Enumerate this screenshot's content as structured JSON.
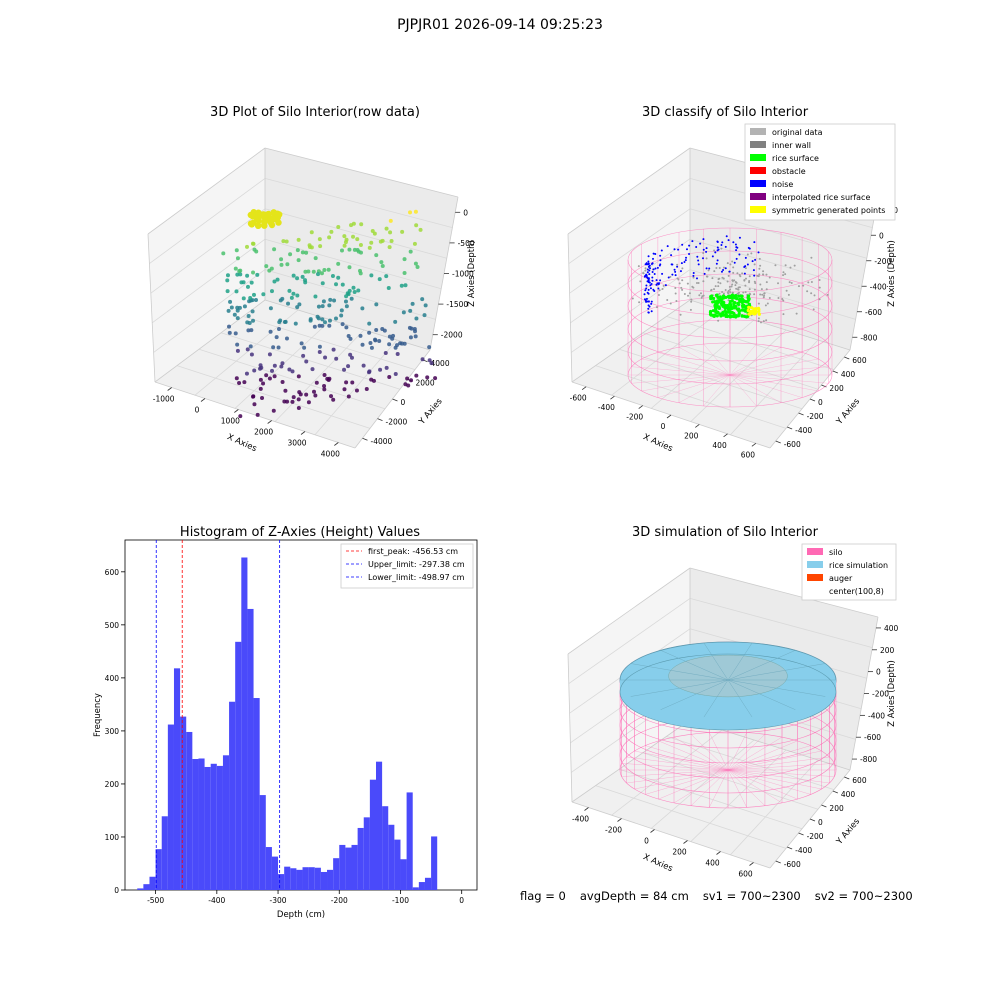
{
  "figure": {
    "title": "PJPJR01 2026-09-14 09:25:23",
    "footer": {
      "flag": "flag = 0",
      "avg_depth": "avgDepth = 84 cm",
      "sv1": "sv1 = 700~2300",
      "sv2": "sv2 = 700~2300"
    }
  },
  "chart_data": [
    {
      "type": "scatter",
      "projection": "3d",
      "title": "3D Plot of Silo Interior(row data)",
      "xlabel": "X Axies",
      "ylabel": "Y Axies",
      "zlabel": "Z Axies (Depth)",
      "x_ticks": [
        "-1000",
        "0",
        "1000",
        "2000",
        "3000",
        "4000"
      ],
      "y_ticks": [
        "-4000",
        "-2000",
        "0",
        "2000",
        "4000"
      ],
      "z_ticks": [
        "0",
        "-500",
        "-1000",
        "-1500",
        "-2000"
      ],
      "colormap": "viridis",
      "legend": "none"
    },
    {
      "type": "scatter",
      "projection": "3d",
      "title": "3D classify of Silo Interior",
      "xlabel": "X Axies",
      "ylabel": "Y Axies",
      "zlabel": "Z Axies (Depth)",
      "x_ticks": [
        "-600",
        "-400",
        "-200",
        "0",
        "200",
        "400",
        "600"
      ],
      "y_ticks": [
        "-600",
        "-400",
        "-200",
        "0",
        "200",
        "400",
        "600"
      ],
      "z_ticks": [
        "200",
        "0",
        "-200",
        "-400",
        "-600",
        "-800"
      ],
      "legend": "top-right",
      "legend_entries": [
        {
          "label": "original data",
          "color": "#b3b3b3"
        },
        {
          "label": "inner wall",
          "color": "#808080"
        },
        {
          "label": "rice surface",
          "color": "#00ff00"
        },
        {
          "label": "obstacle",
          "color": "#ff0000"
        },
        {
          "label": "noise",
          "color": "#0000ff"
        },
        {
          "label": "interpolated rice surface",
          "color": "#800080"
        },
        {
          "label": "symmetric generated points",
          "color": "#ffff00"
        }
      ],
      "wireframe_color": "#ff69b4"
    },
    {
      "type": "bar",
      "subtype": "histogram",
      "title": "Histogram of Z-Axies (Height) Values",
      "xlabel": "Depth (cm)",
      "ylabel": "Frequency",
      "xlim": [
        -550,
        25
      ],
      "ylim": [
        0,
        660
      ],
      "x_ticks": [
        "-500",
        "-400",
        "-300",
        "-200",
        "-100",
        "0"
      ],
      "y_ticks": [
        "0",
        "100",
        "200",
        "300",
        "400",
        "500",
        "600"
      ],
      "bin_start": -530,
      "bin_width": 10,
      "bin_color": "#4a4afa",
      "counts": [
        3,
        11,
        25,
        77,
        139,
        312,
        418,
        327,
        298,
        247,
        248,
        232,
        238,
        234,
        254,
        355,
        468,
        627,
        530,
        362,
        179,
        81,
        63,
        30,
        44,
        41,
        38,
        43,
        43,
        42,
        34,
        38,
        60,
        85,
        80,
        85,
        117,
        137,
        208,
        242,
        158,
        123,
        95,
        58,
        184,
        5,
        15,
        23,
        101
      ],
      "vlines": [
        {
          "label": "first_peak: -456.53 cm",
          "x": -456.53,
          "color": "#ff0000"
        },
        {
          "label": "Upper_limit: -297.38 cm",
          "x": -297.38,
          "color": "#0000ff"
        },
        {
          "label": "Lower_limit: -498.97 cm",
          "x": -498.97,
          "color": "#0000ff"
        }
      ],
      "legend": "top-right"
    },
    {
      "type": "surface",
      "projection": "3d",
      "title": "3D simulation of Silo Interior",
      "xlabel": "X Axies",
      "ylabel": "Y Axies",
      "zlabel": "Z Axies (Depth)",
      "x_ticks": [
        "-400",
        "-200",
        "0",
        "200",
        "400",
        "600"
      ],
      "y_ticks": [
        "-600",
        "-400",
        "-200",
        "0",
        "200",
        "400",
        "600"
      ],
      "z_ticks": [
        "400",
        "200",
        "0",
        "-200",
        "-400",
        "-600",
        "-800"
      ],
      "legend": "top-right",
      "legend_entries": [
        {
          "label": "silo",
          "color": "#ff69b4"
        },
        {
          "label": "rice simulation",
          "color": "#87ceeb"
        },
        {
          "label": "auger",
          "color": "#ff4500"
        },
        {
          "label": "center(100,8)",
          "color": "#ffffff"
        }
      ]
    }
  ]
}
